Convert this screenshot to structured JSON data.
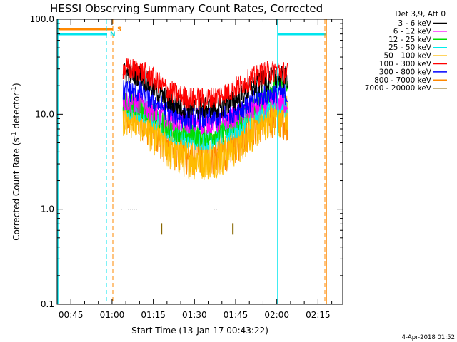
{
  "chart_data": {
    "type": "line",
    "title": "HESSI Observing Summary Count Rates, Corrected",
    "xlabel": "Start Time (13-Jan-17 00:43:22)",
    "ylabel_parts": {
      "prefix": "Corrected Count Rate (s",
      "sup1": "-1",
      "mid": " detector",
      "sup2": "-1",
      "suffix": ")"
    },
    "xlim": [
      "00:40",
      "02:24"
    ],
    "ylim": [
      0.1,
      100.0
    ],
    "yscale": "log",
    "x_ticks": [
      "00:45",
      "01:00",
      "01:15",
      "01:30",
      "01:45",
      "02:00",
      "02:15"
    ],
    "y_ticks": [
      "0.1",
      "1.0",
      "10.0",
      "100.0"
    ],
    "legend_position": "top-right (outside plot)",
    "legend_header": "Det 3,9, Att 0",
    "footer_date": "4-Apr-2018 01:52",
    "markers": {
      "S": "S",
      "N": "N"
    },
    "series": [
      {
        "name": "3 - 6 keV",
        "color": "#000000",
        "x": [
          "01:04",
          "01:10",
          "01:15",
          "01:20",
          "01:25",
          "01:30",
          "01:35",
          "01:40",
          "01:45",
          "01:50",
          "01:55",
          "02:00",
          "02:04"
        ],
        "values": [
          27,
          26,
          19,
          14,
          12,
          11.5,
          11.5,
          12,
          14,
          18,
          22,
          25,
          24
        ]
      },
      {
        "name": "6 - 12 keV",
        "color": "#ff00ff",
        "x": [
          "01:04",
          "01:10",
          "01:15",
          "01:20",
          "01:25",
          "01:30",
          "01:35",
          "01:40",
          "01:45",
          "01:50",
          "01:55",
          "02:00",
          "02:04"
        ],
        "values": [
          14,
          13,
          11,
          9,
          8.5,
          8,
          8,
          8.5,
          9.5,
          11,
          13,
          14,
          13
        ]
      },
      {
        "name": "12 - 25 keV",
        "color": "#00dd00",
        "x": [
          "01:04",
          "01:10",
          "01:15",
          "01:20",
          "01:25",
          "01:30",
          "01:35",
          "01:40",
          "01:45",
          "01:50",
          "01:55",
          "02:00",
          "02:04"
        ],
        "values": [
          13,
          12,
          10,
          7.5,
          6.5,
          6,
          6,
          6.5,
          8,
          11,
          15,
          20,
          22
        ]
      },
      {
        "name": "25 - 50 keV",
        "color": "#00eeee",
        "x": [
          "01:04",
          "01:10",
          "01:15",
          "01:20",
          "01:25",
          "01:30",
          "01:35",
          "01:40",
          "01:45",
          "01:50",
          "01:55",
          "02:00",
          "02:04"
        ],
        "values": [
          12,
          11,
          9,
          7,
          6,
          5.5,
          5.5,
          6,
          7,
          9,
          11,
          13,
          12
        ]
      },
      {
        "name": "50 - 100 keV",
        "color": "#ffbb00",
        "x": [
          "01:04",
          "01:10",
          "01:15",
          "01:20",
          "01:25",
          "01:30",
          "01:35",
          "01:40",
          "01:45",
          "01:50",
          "01:55",
          "02:00",
          "02:04"
        ],
        "values": [
          10,
          9,
          6.5,
          4.5,
          3.8,
          3.5,
          3.5,
          3.8,
          4.8,
          6.5,
          8.5,
          10,
          9.5
        ]
      },
      {
        "name": "100 - 300 keV",
        "color": "#ff0000",
        "x": [
          "01:04",
          "01:10",
          "01:15",
          "01:20",
          "01:25",
          "01:30",
          "01:35",
          "01:40",
          "01:45",
          "01:50",
          "01:55",
          "02:00",
          "02:04"
        ],
        "values": [
          30,
          29,
          24,
          18,
          15.5,
          14.5,
          14.5,
          16,
          19,
          23,
          27,
          29,
          27
        ]
      },
      {
        "name": "300 - 800 keV",
        "color": "#0000ff",
        "x": [
          "01:04",
          "01:10",
          "01:15",
          "01:20",
          "01:25",
          "01:30",
          "01:35",
          "01:40",
          "01:45",
          "01:50",
          "01:55",
          "02:00",
          "02:04"
        ],
        "values": [
          18,
          17,
          14,
          11,
          9.5,
          9,
          9,
          9.5,
          11,
          13,
          16,
          17,
          16
        ]
      },
      {
        "name": "800 - 7000 keV",
        "color": "#ff8800",
        "x": [
          "01:04",
          "01:10",
          "01:15",
          "01:20",
          "01:25",
          "01:30",
          "01:35",
          "01:40",
          "01:45",
          "01:50",
          "01:55",
          "02:00",
          "02:04"
        ],
        "values": [
          10,
          9.5,
          7,
          5,
          4,
          3.8,
          3.8,
          4,
          5,
          7,
          9,
          10,
          9
        ]
      },
      {
        "name": "7000 - 20000 keV",
        "color": "#886600",
        "x": [
          "01:18",
          "01:44"
        ],
        "values": [
          0.62,
          0.62
        ]
      }
    ]
  }
}
